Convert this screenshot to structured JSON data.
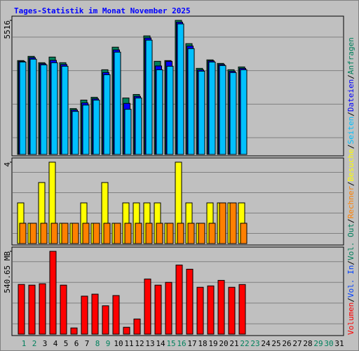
{
  "chart_data": {
    "type": "bar",
    "title": "Tages-Statistik im Monat November 2025",
    "categories": [
      "1",
      "2",
      "3",
      "4",
      "5",
      "6",
      "7",
      "8",
      "9",
      "10",
      "11",
      "12",
      "13",
      "14",
      "15",
      "16",
      "17",
      "18",
      "19",
      "20",
      "21",
      "22",
      "23",
      "24",
      "25",
      "26",
      "27",
      "28",
      "29",
      "30",
      "31"
    ],
    "category_colors": [
      "#00805c",
      "#00805c",
      "#000000",
      "#000000",
      "#000000",
      "#000000",
      "#000000",
      "#00805c",
      "#00805c",
      "#000000",
      "#000000",
      "#000000",
      "#000000",
      "#000000",
      "#00805c",
      "#00805c",
      "#000000",
      "#000000",
      "#000000",
      "#000000",
      "#000000",
      "#00805c",
      "#00805c",
      "#000000",
      "#000000",
      "#000000",
      "#000000",
      "#000000",
      "#00805c",
      "#00805c",
      "#000000"
    ],
    "legend_separator": "/",
    "panels": [
      {
        "ylim": [
          0,
          5516
        ],
        "yticks": [
          5516
        ],
        "series": [
          {
            "name": "Anfragen",
            "color": "#00805c",
            "values": [
              3861,
              4035,
              3774,
              4006,
              3774,
              1887,
              2235,
              2351,
              3484,
              4413,
              2322,
              2467,
              4877,
              3832,
              3861,
              5516,
              4558,
              3542,
              3890,
              3745,
              3484,
              3600,
              null,
              null,
              null,
              null,
              null,
              null,
              null,
              null,
              null
            ]
          },
          {
            "name": "Dateien",
            "color": "#0000ff",
            "values": [
              3830,
              3980,
              3730,
              3870,
              3700,
              1830,
              2120,
              2290,
              3370,
              4300,
              2100,
              2390,
              4790,
              3640,
              3830,
              5440,
              4460,
              3480,
              3850,
              3700,
              3420,
              3540,
              null,
              null,
              null,
              null,
              null,
              null,
              null,
              null,
              null
            ]
          },
          {
            "name": "Seiten",
            "color": "#00c0ff",
            "values": [
              3803,
              3919,
              3687,
              3774,
              3629,
              1771,
              2032,
              2235,
              3280,
              4209,
              1858,
              2322,
              4703,
              3484,
              3629,
              5371,
              4355,
              3426,
              3803,
              3658,
              3368,
              3484,
              null,
              null,
              null,
              null,
              null,
              null,
              null,
              null,
              null
            ]
          }
        ]
      },
      {
        "ylim": [
          0,
          4
        ],
        "yticks": [
          4
        ],
        "series": [
          {
            "name": "Besuche",
            "color": "#ffff00",
            "values": [
              2,
              1,
              3,
              4,
              1,
              1,
              2,
              1,
              3,
              1,
              2,
              2,
              2,
              2,
              1,
              4,
              2,
              1,
              2,
              2,
              2,
              2,
              null,
              null,
              null,
              null,
              null,
              null,
              null,
              null,
              null
            ]
          },
          {
            "name": "Rechner",
            "color": "#ff8000",
            "values": [
              1,
              1,
              1,
              1,
              1,
              1,
              1,
              1,
              1,
              1,
              1,
              1,
              1,
              1,
              1,
              1,
              1,
              1,
              1,
              2,
              2,
              1,
              null,
              null,
              null,
              null,
              null,
              null,
              null,
              null,
              null
            ]
          }
        ]
      },
      {
        "ylim": [
          0,
          540.65
        ],
        "yticks": [
          {
            "value": 540.65,
            "label": "540.65 MB"
          }
        ],
        "series": [
          {
            "name": "Vol. Out",
            "color": "#00805c",
            "values": [
              null,
              null,
              null,
              null,
              null,
              null,
              null,
              null,
              null,
              null,
              null,
              null,
              null,
              null,
              null,
              null,
              null,
              null,
              null,
              null,
              null,
              null,
              null,
              null,
              null,
              null,
              null,
              null,
              null,
              null,
              null
            ]
          },
          {
            "name": "Vol. In",
            "color": "#0040ff",
            "values": [
              null,
              null,
              null,
              null,
              null,
              null,
              null,
              null,
              null,
              null,
              null,
              null,
              null,
              null,
              null,
              null,
              null,
              null,
              null,
              null,
              null,
              null,
              null,
              null,
              null,
              null,
              null,
              null,
              null,
              null,
              null
            ]
          },
          {
            "name": "Volumen",
            "color": "#ff0000",
            "values": [
              324.4,
              320,
              329,
              540.65,
              320,
              40.5,
              248,
              261,
              185,
              252,
              45,
              99,
              360,
              320,
              338,
              451,
              424,
              306,
              315,
              351,
              306,
              324,
              null,
              null,
              null,
              null,
              null,
              null,
              null,
              null,
              null
            ]
          }
        ]
      }
    ]
  }
}
